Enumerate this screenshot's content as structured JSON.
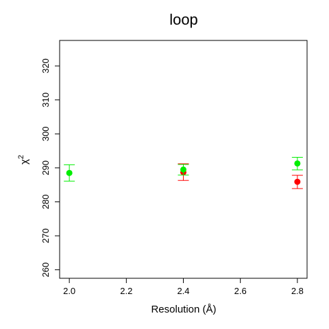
{
  "chart_data": {
    "type": "scatter",
    "title": "loop",
    "xlabel": "Resolution (Å)",
    "ylabel": "χ2",
    "ylabel_base": "χ",
    "ylabel_sup": "2",
    "xlim": [
      1.966,
      2.834
    ],
    "ylim": [
      257.5,
      327.5
    ],
    "xticks": [
      2.0,
      2.2,
      2.4,
      2.6,
      2.8
    ],
    "xtick_labels": [
      "2.0",
      "2.2",
      "2.4",
      "2.6",
      "2.8"
    ],
    "yticks": [
      260,
      270,
      280,
      290,
      300,
      310,
      320
    ],
    "ytick_labels": [
      "260",
      "270",
      "280",
      "290",
      "300",
      "310",
      "320"
    ],
    "grid": false,
    "series": [
      {
        "color": "#ff0000",
        "points": [
          {
            "x": 2.4,
            "y": 288.7,
            "err_low": 286.3,
            "err_high": 291.2
          },
          {
            "x": 2.8,
            "y": 285.9,
            "err_low": 283.9,
            "err_high": 287.8
          }
        ]
      },
      {
        "color": "#00ee00",
        "points": [
          {
            "x": 2.0,
            "y": 288.5,
            "err_low": 286.1,
            "err_high": 290.9
          },
          {
            "x": 2.4,
            "y": 289.5,
            "err_low": 287.9,
            "err_high": 291.0
          },
          {
            "x": 2.8,
            "y": 291.3,
            "err_low": 289.4,
            "err_high": 293.1
          }
        ]
      }
    ]
  }
}
